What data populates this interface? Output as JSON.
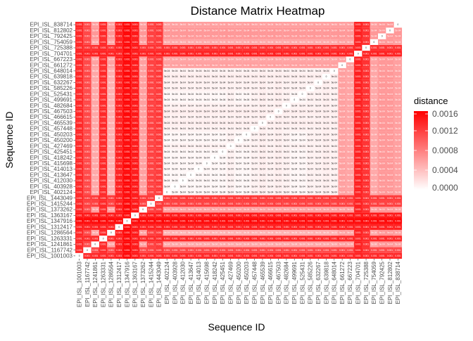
{
  "chart_data": {
    "type": "heatmap",
    "title": "Distance Matrix Heatmap",
    "xlabel": "Sequence ID",
    "ylabel": "Sequence ID",
    "legend": {
      "title": "distance",
      "placement": "right",
      "ticks": [
        "0.0016",
        "0.0012",
        "0.0008",
        "0.0004",
        "0.0000"
      ],
      "range": [
        0,
        0.0016
      ],
      "color_low": "#ffffff",
      "color_high": "#ff0000"
    },
    "ids": [
      "EPI_ISL_1001003",
      "EPI_ISL_1167742",
      "EPI_ISL_1241861",
      "EPI_ISL_1263331",
      "EPI_ISL_1286564",
      "EPI_ISL_1312417",
      "EPI_ISL_1347916",
      "EPI_ISL_1363167",
      "EPI_ISL_1373262",
      "EPI_ISL_1415244",
      "EPI_ISL_1443049",
      "EPI_ISL_402124",
      "EPI_ISL_403928",
      "EPI_ISL_412030",
      "EPI_ISL_413647",
      "EPI_ISL_414013",
      "EPI_ISL_415698",
      "EPI_ISL_418242",
      "EPI_ISL_425451",
      "EPI_ISL_427469",
      "EPI_ISL_450200",
      "EPI_ISL_450203",
      "EPI_ISL_457448",
      "EPI_ISL_465539",
      "EPI_ISL_466615",
      "EPI_ISL_467503",
      "EPI_ISL_482684",
      "EPI_ISL_499691",
      "EPI_ISL_525431",
      "EPI_ISL_585226",
      "EPI_ISL_632267",
      "EPI_ISL_639818",
      "EPI_ISL_648014",
      "EPI_ISL_661272",
      "EPI_ISL_667223",
      "EPI_ISL_704701",
      "EPI_ISL_725388",
      "EPI_ISL_754059",
      "EPI_ISL_792425",
      "EPI_ISL_812802",
      "EPI_ISL_838714"
    ],
    "row_distance": [
      0.00135,
      0.00115,
      0.00055,
      0.00135,
      0.0005,
      0.0014,
      0.00155,
      0.00145,
      0.0006,
      0.0012,
      0.00125,
      3e-05,
      5e-05,
      5e-05,
      5e-05,
      5e-05,
      5e-05,
      5e-05,
      5e-05,
      8e-05,
      3e-05,
      5e-05,
      8e-05,
      0.0001,
      8e-05,
      0.0001,
      8e-05,
      5e-05,
      5e-05,
      8e-05,
      8e-05,
      0.0001,
      8e-05,
      0.0006,
      0.00058,
      0.0014,
      0.0013,
      0.00055,
      0.00065,
      0.00065,
      0.0006
    ],
    "cell_label_low": "5e-04",
    "cell_label_mid": "0.001",
    "cell_label_zero": "0"
  }
}
